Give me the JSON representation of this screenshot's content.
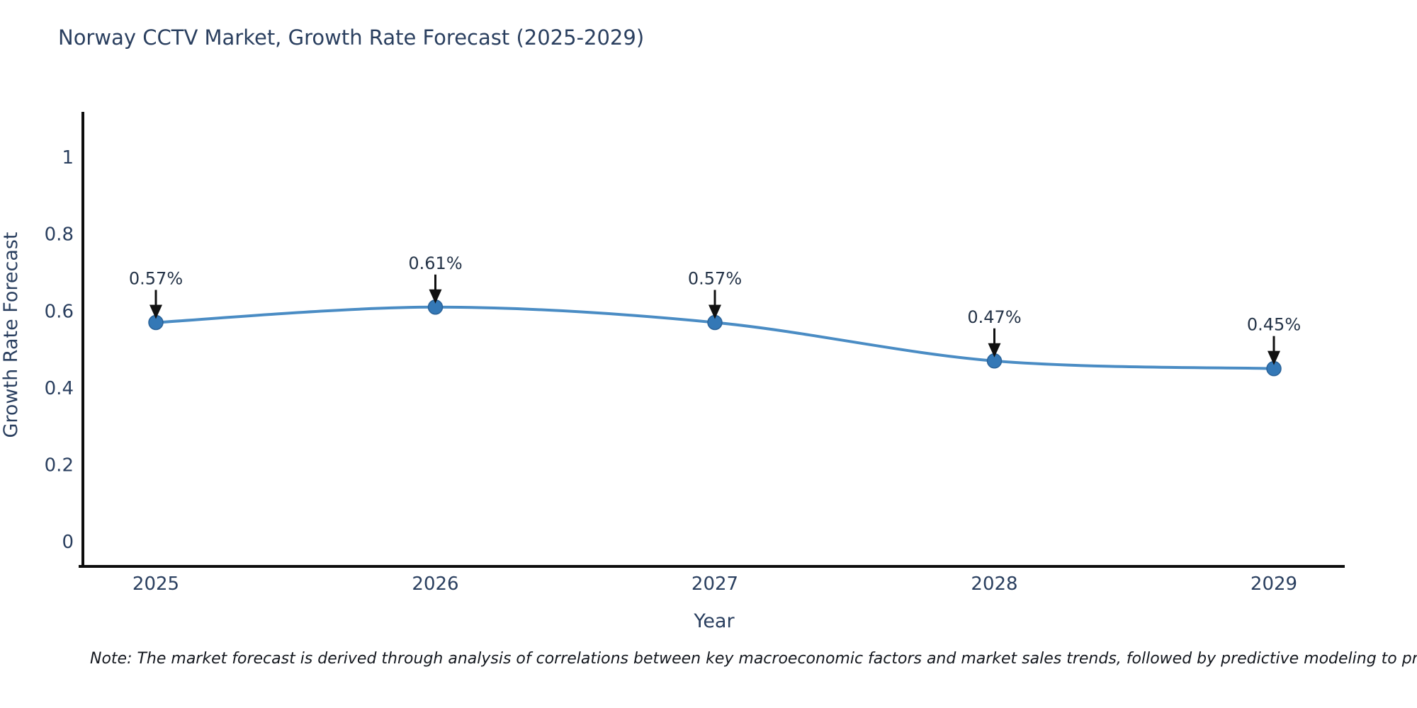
{
  "header": {
    "title": "Norway CCTV Market, Growth Rate Forecast (2025-2029)"
  },
  "footnote": "Note: The market forecast is derived through analysis of correlations between key macroeconomic factors and market sales trends, followed by predictive modeling to project future sales",
  "chart_data": {
    "type": "line",
    "title": "Norway CCTV Market, Growth Rate Forecast (2025-2029)",
    "xlabel": "Year",
    "ylabel": "Growth Rate Forecast",
    "categories": [
      "2025",
      "2026",
      "2027",
      "2028",
      "2029"
    ],
    "series": [
      {
        "name": "Growth Rate Forecast",
        "values": [
          0.57,
          0.61,
          0.57,
          0.47,
          0.45
        ]
      }
    ],
    "point_labels": [
      "0.57%",
      "0.61%",
      "0.57%",
      "0.47%",
      "0.45%"
    ],
    "y_ticks": [
      "0",
      "0.2",
      "0.4",
      "0.6",
      "0.8",
      "1"
    ],
    "y_tick_values": [
      0,
      0.2,
      0.4,
      0.6,
      0.8,
      1
    ],
    "ylim": [
      0,
      1
    ],
    "grid": false,
    "legend_position": "none",
    "line_shape": "spline",
    "annotations_have_arrows": true,
    "colors": {
      "line": "#4a8cc4",
      "marker": "#3478b6",
      "marker_edge": "#2b6399",
      "axis_line": "#0d0d0d",
      "tick_text": "#2a3f5f",
      "annotation_text": "#243347",
      "arrow": "#111111",
      "title_text": "#2a3f5f",
      "background": "#ffffff"
    }
  }
}
